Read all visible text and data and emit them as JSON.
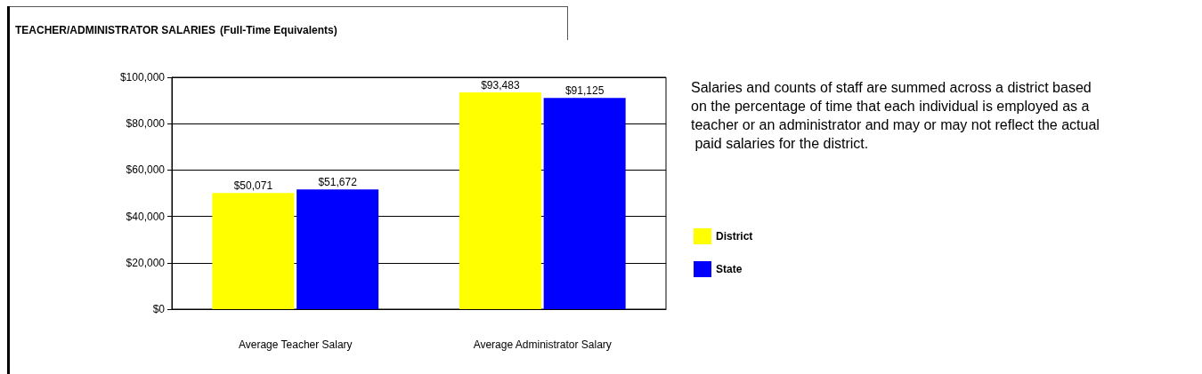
{
  "chart_data": {
    "type": "bar",
    "title": "TEACHER/ADMINISTRATOR SALARIES",
    "subtitle": "(Full-Time Equivalents)",
    "categories": [
      "Average Teacher Salary",
      "Average Administrator Salary"
    ],
    "series": [
      {
        "name": "District",
        "color": "#ffff00",
        "values": [
          50071,
          93483
        ],
        "value_labels": [
          "$50,071",
          "$93,483"
        ]
      },
      {
        "name": "State",
        "color": "#0000ff",
        "values": [
          51672,
          91125
        ],
        "value_labels": [
          "$51,672",
          "$91,125"
        ]
      }
    ],
    "ylim": [
      0,
      100000
    ],
    "yticks": [
      {
        "value": 0,
        "label": "$0"
      },
      {
        "value": 20000,
        "label": "$20,000"
      },
      {
        "value": 40000,
        "label": "$40,000"
      },
      {
        "value": 60000,
        "label": "$60,000"
      },
      {
        "value": 80000,
        "label": "$80,000"
      },
      {
        "value": 100000,
        "label": "$100,000"
      }
    ],
    "grid": "y",
    "legend": "right",
    "annotations": [
      "Salaries and counts of staff are summed across a district based on the percentage of time that each individual is employed as a teacher or an administrator and may or may not reflect the actual paid salaries for the district."
    ]
  }
}
